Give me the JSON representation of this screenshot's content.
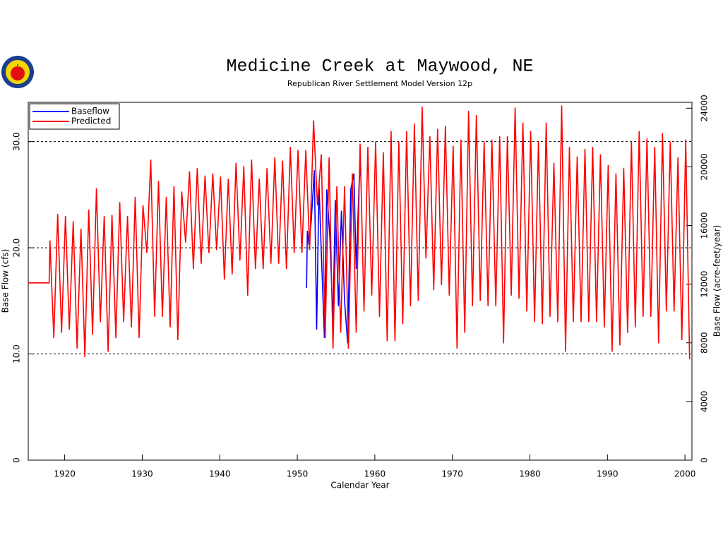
{
  "chart_data": {
    "type": "line",
    "title": "Medicine Creek at Maywood, NE",
    "subtitle": "Republican River Settlement Model Version 12p",
    "x_label": "Calendar Year",
    "y_label": "Base Flow (cfs)",
    "y2_label": "Base Flow (acre-feet/year)",
    "xlim": [
      1915.3,
      2000.9
    ],
    "xticks": [
      1920,
      1930,
      1940,
      1950,
      1960,
      1970,
      1980,
      1990,
      2000
    ],
    "ylim": [
      0,
      33.7
    ],
    "yticks": [
      0,
      {
        "value": 10,
        "label": "10.0"
      },
      {
        "value": 20,
        "label": "20.0"
      },
      {
        "value": 30,
        "label": "30.0"
      }
    ],
    "y2lim": [
      0,
      24400
    ],
    "y2ticks": [
      0,
      4000,
      8000,
      12000,
      16000,
      20000,
      24000
    ],
    "grid": true,
    "legend": "upper left",
    "series": [
      {
        "name": "Baseflow",
        "color": "#0000ff",
        "x": [
          1951.2,
          1951.3,
          1951.5,
          1951.8,
          1952.2,
          1952.5,
          1952.8,
          1953.1,
          1953.5,
          1953.8,
          1954.2,
          1954.6,
          1954.9,
          1955.3,
          1955.7,
          1956.1,
          1956.5,
          1956.9,
          1957.3,
          1957.6,
          1958.0,
          1958.2
        ],
        "values": [
          16.2,
          21.6,
          20.3,
          22.5,
          27.3,
          12.3,
          26,
          19.5,
          11.5,
          25.5,
          21,
          13,
          24.5,
          14.5,
          23.5,
          15,
          11,
          25.5,
          27,
          18,
          26.5,
          27.5
        ]
      },
      {
        "name": "Predicted",
        "color": "#ff0000",
        "x": [
          1915.3,
          1918.0,
          1918.1,
          1918.6,
          1919.1,
          1919.6,
          1920.1,
          1920.6,
          1921.1,
          1921.6,
          1922.1,
          1922.6,
          1923.1,
          1923.6,
          1924.1,
          1924.6,
          1925.1,
          1925.6,
          1926.1,
          1926.6,
          1927.1,
          1927.6,
          1928.1,
          1928.6,
          1929.1,
          1929.6,
          1930.1,
          1930.6,
          1931.1,
          1931.6,
          1932.1,
          1932.6,
          1933.1,
          1933.6,
          1934.1,
          1934.6,
          1935.1,
          1935.6,
          1936.1,
          1936.6,
          1937.1,
          1937.6,
          1938.1,
          1938.6,
          1939.1,
          1939.6,
          1940.1,
          1940.6,
          1941.1,
          1941.6,
          1942.1,
          1942.6,
          1943.1,
          1943.6,
          1944.1,
          1944.6,
          1945.1,
          1945.6,
          1946.1,
          1946.6,
          1947.1,
          1947.6,
          1948.1,
          1948.6,
          1949.1,
          1949.6,
          1950.1,
          1950.6,
          1951.1,
          1951.6,
          1952.1,
          1952.6,
          1953.1,
          1953.6,
          1954.1,
          1954.6,
          1955.1,
          1955.6,
          1956.1,
          1956.6,
          1957.1,
          1957.6,
          1958.1,
          1958.6,
          1959.1,
          1959.6,
          1960.1,
          1960.6,
          1961.1,
          1961.6,
          1962.1,
          1962.6,
          1963.1,
          1963.6,
          1964.1,
          1964.6,
          1965.1,
          1965.6,
          1966.1,
          1966.6,
          1967.1,
          1967.6,
          1968.1,
          1968.6,
          1969.1,
          1969.6,
          1970.1,
          1970.6,
          1971.1,
          1971.6,
          1972.1,
          1972.6,
          1973.1,
          1973.6,
          1974.1,
          1974.6,
          1975.1,
          1975.6,
          1976.1,
          1976.6,
          1977.1,
          1977.6,
          1978.1,
          1978.6,
          1979.1,
          1979.6,
          1980.1,
          1980.6,
          1981.1,
          1981.6,
          1982.1,
          1982.6,
          1983.1,
          1983.6,
          1984.1,
          1984.6,
          1985.1,
          1985.6,
          1986.1,
          1986.6,
          1987.1,
          1987.6,
          1988.1,
          1988.6,
          1989.1,
          1989.6,
          1990.1,
          1990.6,
          1991.1,
          1991.6,
          1992.1,
          1992.6,
          1993.1,
          1993.6,
          1994.1,
          1994.6,
          1995.1,
          1995.6,
          1996.1,
          1996.6,
          1997.1,
          1997.6,
          1998.1,
          1998.6,
          1999.1,
          1999.6,
          2000.1,
          2000.6
        ],
        "values": [
          16.7,
          16.7,
          20.7,
          11.5,
          23.2,
          12,
          23,
          12.3,
          22.5,
          10.5,
          21.8,
          9.7,
          23.6,
          11.8,
          25.6,
          13,
          23,
          10.2,
          23.1,
          11.5,
          24.3,
          13,
          23,
          12.5,
          24.8,
          11.5,
          24,
          19.5,
          28.3,
          13.5,
          26.3,
          13.5,
          24.8,
          12.5,
          25.8,
          11.3,
          25.3,
          20.5,
          27.2,
          18,
          27.5,
          18.5,
          26.8,
          19.5,
          27,
          19.8,
          26.7,
          17,
          26.5,
          17.5,
          28,
          18.8,
          27.7,
          15.5,
          28.3,
          18,
          26.5,
          18,
          27.5,
          18.5,
          28.5,
          18.5,
          28.2,
          18,
          29.5,
          19.5,
          29.2,
          19.5,
          29.2,
          19.8,
          32,
          24,
          28.8,
          11.5,
          28.5,
          10.5,
          25.8,
          12,
          25.8,
          10.5,
          27,
          12,
          29.8,
          14,
          29.5,
          15.5,
          30,
          13.5,
          29,
          11.2,
          31,
          11.2,
          30,
          12.8,
          31,
          14.5,
          31.7,
          15,
          33.3,
          19,
          30.5,
          16,
          31.2,
          16.5,
          31.5,
          15.5,
          29.6,
          10.5,
          30.2,
          12,
          32.9,
          14.5,
          32.5,
          15,
          30,
          14.5,
          30.2,
          14.5,
          30.5,
          11,
          30.5,
          15.5,
          33.2,
          15.2,
          31.8,
          14,
          31,
          13,
          30,
          12.8,
          31.8,
          13.5,
          28,
          13,
          33.4,
          10.2,
          29.5,
          13,
          28.6,
          13,
          29.3,
          13,
          29.5,
          13,
          28.8,
          12.5,
          27.8,
          10.2,
          27,
          10.8,
          27.5,
          12,
          30,
          12.5,
          31,
          13.5,
          30.3,
          13.5,
          29.5,
          11,
          30.8,
          14,
          30,
          14,
          28.5,
          11.3,
          30.2,
          9.5
        ]
      }
    ]
  }
}
